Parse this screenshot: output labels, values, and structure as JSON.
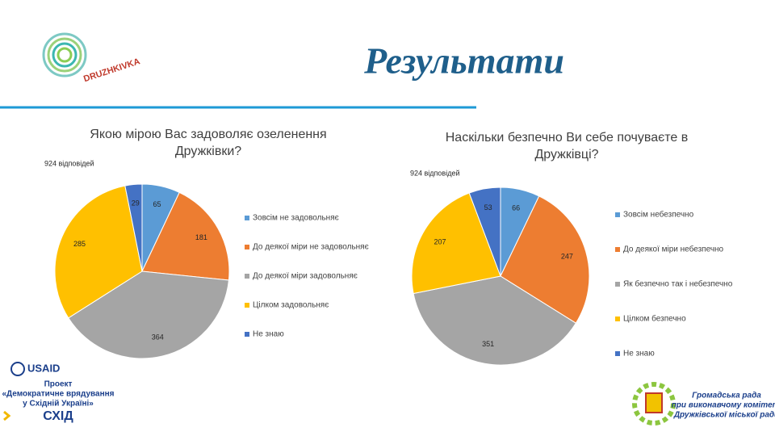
{
  "header": {
    "logo": "DRUZHKIVKA",
    "title": "Результати"
  },
  "chart_data": [
    {
      "type": "pie",
      "title": "Якою мірою Вас задоволяє озеленення Дружківки?",
      "annotation": "924 відповідей",
      "categories": [
        "Зовсім не задовольняє",
        "До деякої міри не задовольняє",
        "До деякої міри задовольняє",
        "Цілком задовольняє",
        "Не знаю"
      ],
      "values": [
        65,
        181,
        364,
        285,
        29
      ],
      "colors": [
        "#5b9bd5",
        "#ed7d31",
        "#a5a5a5",
        "#ffc000",
        "#4472c4"
      ]
    },
    {
      "type": "pie",
      "title": "Наскільки безпечно Ви себе почуваєте в Дружківці?",
      "annotation": "924 відповідей",
      "categories": [
        "Зовсім небезпечно",
        "До деякої міри небезпечно",
        "Як безпечно так і небезпечно",
        "Цілком безпечно",
        "Не знаю"
      ],
      "values": [
        66,
        247,
        351,
        207,
        53
      ],
      "colors": [
        "#5b9bd5",
        "#ed7d31",
        "#a5a5a5",
        "#ffc000",
        "#4472c4"
      ]
    }
  ],
  "footer": {
    "usaid": "USAID",
    "project": [
      "Проект",
      "«Демократичне врядування",
      "у Східній Україні»"
    ],
    "shid": "СХІД",
    "council": [
      "Громадська рада",
      "при виконавчому комітеті",
      "Дружківської міської ради"
    ]
  }
}
